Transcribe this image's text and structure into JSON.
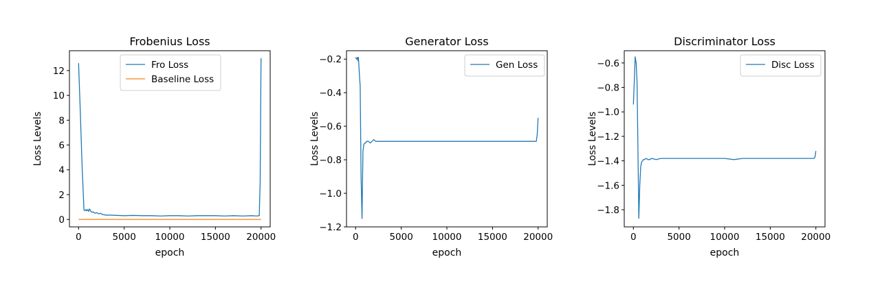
{
  "chart_data": [
    {
      "type": "line",
      "title": "Frobenius Loss",
      "xlabel": "epoch",
      "ylabel": "Loss Levels",
      "xlim": [
        -1000,
        21000
      ],
      "ylim": [
        -0.6,
        13.6
      ],
      "xticks": [
        0,
        5000,
        10000,
        15000,
        20000
      ],
      "xtick_labels": [
        "0",
        "5000",
        "10000",
        "15000",
        "20000"
      ],
      "yticks": [
        0,
        2,
        4,
        6,
        8,
        10,
        12
      ],
      "ytick_labels": [
        "0",
        "2",
        "4",
        "6",
        "8",
        "10",
        "12"
      ],
      "grid": false,
      "legend": "upper center",
      "series": [
        {
          "name": "Fro Loss",
          "color": "#1f77b4",
          "x": [
            0,
            200,
            400,
            600,
            700,
            800,
            900,
            1000,
            1100,
            1200,
            1400,
            1600,
            1800,
            2000,
            2200,
            2400,
            2600,
            3000,
            3500,
            4000,
            5000,
            6000,
            7000,
            8000,
            9000,
            10000,
            11000,
            12000,
            13000,
            14000,
            15000,
            16000,
            17000,
            18000,
            19000,
            19500,
            19800,
            19900,
            20000
          ],
          "y": [
            12.6,
            8.5,
            4.0,
            0.75,
            0.7,
            0.8,
            0.7,
            0.8,
            0.65,
            0.85,
            0.6,
            0.6,
            0.5,
            0.55,
            0.45,
            0.5,
            0.4,
            0.35,
            0.35,
            0.33,
            0.3,
            0.32,
            0.3,
            0.3,
            0.28,
            0.3,
            0.3,
            0.28,
            0.3,
            0.3,
            0.3,
            0.28,
            0.3,
            0.28,
            0.3,
            0.28,
            0.3,
            3.0,
            13.0
          ]
        },
        {
          "name": "Baseline Loss",
          "color": "#ff7f0e",
          "x": [
            0,
            20000
          ],
          "y": [
            0.0,
            0.0
          ]
        }
      ]
    },
    {
      "type": "line",
      "title": "Generator Loss",
      "xlabel": "epoch",
      "ylabel": "Loss Levels",
      "xlim": [
        -1000,
        21000
      ],
      "ylim": [
        -1.2,
        -0.15
      ],
      "xticks": [
        0,
        5000,
        10000,
        15000,
        20000
      ],
      "xtick_labels": [
        "0",
        "5000",
        "10000",
        "15000",
        "20000"
      ],
      "yticks": [
        -1.2,
        -1.0,
        -0.8,
        -0.6,
        -0.4,
        -0.2
      ],
      "ytick_labels": [
        "−1.2",
        "−1.0",
        "−0.8",
        "−0.6",
        "−0.4",
        "−0.2"
      ],
      "grid": false,
      "legend": "upper right",
      "series": [
        {
          "name": "Gen Loss",
          "color": "#1f77b4",
          "x": [
            0,
            100,
            200,
            250,
            300,
            400,
            500,
            600,
            700,
            800,
            900,
            1000,
            1100,
            1200,
            1400,
            1600,
            1800,
            2000,
            2200,
            2500,
            3000,
            4000,
            5000,
            6000,
            7000,
            8000,
            9000,
            10000,
            11000,
            12000,
            13000,
            14000,
            15000,
            16000,
            17000,
            18000,
            19000,
            19500,
            19800,
            19900,
            20000
          ],
          "y": [
            -0.19,
            -0.2,
            -0.19,
            -0.21,
            -0.19,
            -0.28,
            -0.36,
            -0.9,
            -1.15,
            -0.75,
            -0.71,
            -0.7,
            -0.7,
            -0.69,
            -0.69,
            -0.7,
            -0.69,
            -0.68,
            -0.69,
            -0.69,
            -0.69,
            -0.69,
            -0.69,
            -0.69,
            -0.69,
            -0.69,
            -0.69,
            -0.69,
            -0.69,
            -0.69,
            -0.69,
            -0.69,
            -0.69,
            -0.69,
            -0.69,
            -0.69,
            -0.69,
            -0.69,
            -0.69,
            -0.65,
            -0.55
          ]
        }
      ]
    },
    {
      "type": "line",
      "title": "Discriminator Loss",
      "xlabel": "epoch",
      "ylabel": "Loss Levels",
      "xlim": [
        -1000,
        21000
      ],
      "ylim": [
        -1.94,
        -0.5
      ],
      "xticks": [
        0,
        5000,
        10000,
        15000,
        20000
      ],
      "xtick_labels": [
        "0",
        "5000",
        "10000",
        "15000",
        "20000"
      ],
      "yticks": [
        -1.8,
        -1.6,
        -1.4,
        -1.2,
        -1.0,
        -0.8,
        -0.6
      ],
      "ytick_labels": [
        "−1.8",
        "−1.6",
        "−1.4",
        "−1.2",
        "−1.0",
        "−0.8",
        "−0.6"
      ],
      "grid": false,
      "legend": "upper right",
      "series": [
        {
          "name": "Disc Loss",
          "color": "#1f77b4",
          "x": [
            0,
            100,
            200,
            300,
            400,
            500,
            600,
            700,
            800,
            900,
            1000,
            1100,
            1200,
            1400,
            1600,
            1800,
            2000,
            2500,
            3000,
            4000,
            5000,
            6000,
            7000,
            8000,
            9000,
            10000,
            11000,
            12000,
            13000,
            14000,
            15000,
            16000,
            17000,
            18000,
            19000,
            19500,
            19800,
            19900,
            20000
          ],
          "y": [
            -0.94,
            -0.75,
            -0.55,
            -0.6,
            -0.75,
            -1.3,
            -1.87,
            -1.6,
            -1.45,
            -1.41,
            -1.4,
            -1.39,
            -1.39,
            -1.38,
            -1.39,
            -1.39,
            -1.38,
            -1.39,
            -1.38,
            -1.38,
            -1.38,
            -1.38,
            -1.38,
            -1.38,
            -1.38,
            -1.38,
            -1.39,
            -1.38,
            -1.38,
            -1.38,
            -1.38,
            -1.38,
            -1.38,
            -1.38,
            -1.38,
            -1.38,
            -1.38,
            -1.37,
            -1.32
          ]
        }
      ]
    }
  ]
}
